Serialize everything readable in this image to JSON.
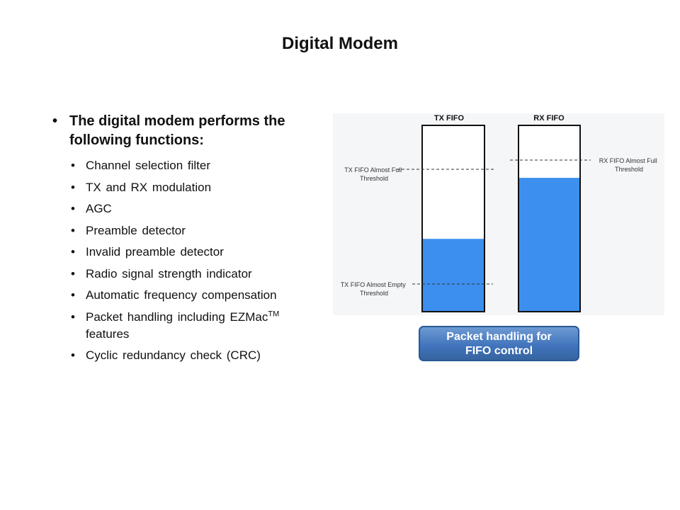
{
  "title": "Digital Modem",
  "main_bullet": "The digital modem performs the following functions:",
  "sub_bullets": [
    "Channel selection filter",
    "TX and RX modulation",
    "AGC",
    "Preamble detector",
    "Invalid preamble detector",
    "Radio signal strength indicator",
    "Automatic frequency compensation",
    "Packet handling including EZMac",
    "Cyclic redundancy check (CRC)"
  ],
  "ezmac_superscript": "TM",
  "ezmac_continuation": "features",
  "diagram": {
    "tx_title": "TX FIFO",
    "rx_title": "RX FIFO",
    "tx_full_label": [
      "TX FIFO Almost Full",
      "Threshold"
    ],
    "tx_empty_label": [
      "TX FIFO Almost Empty",
      "Threshold"
    ],
    "rx_full_label": [
      "RX FIFO Almost Full",
      "Threshold"
    ],
    "tx_fill_fraction": 0.39,
    "rx_fill_fraction": 0.72,
    "fill_color": "#3d8fef"
  },
  "packet_button": [
    "Packet handling for",
    "FIFO control"
  ]
}
